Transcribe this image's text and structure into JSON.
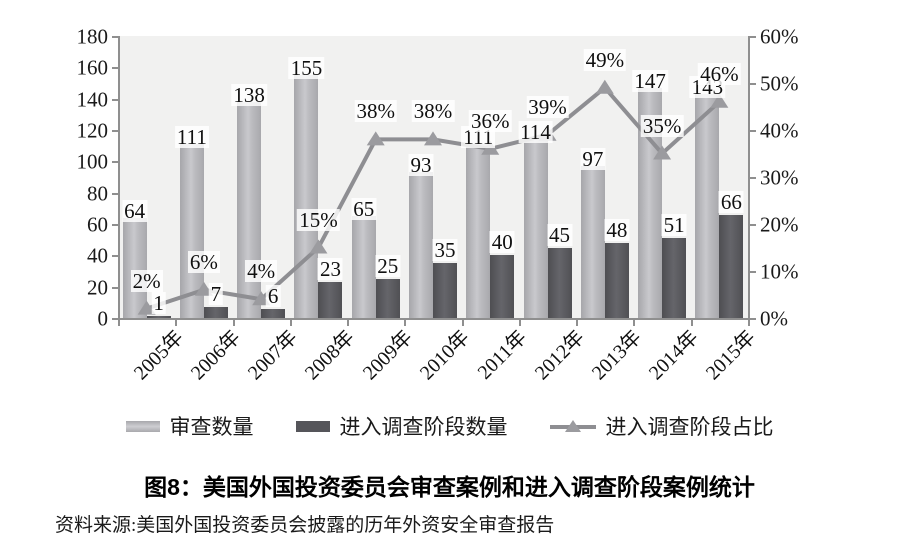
{
  "chart_data": {
    "type": "combo",
    "title": "图8：美国外国投资委员会审查案例和进入调查阶段案例统计",
    "categories": [
      "2005年",
      "2006年",
      "2007年",
      "2008年",
      "2009年",
      "2010年",
      "2011年",
      "2012年",
      "2013年",
      "2014年",
      "2015年"
    ],
    "series": [
      {
        "name": "审查数量",
        "type": "bar",
        "axis": "left",
        "values": [
          64,
          111,
          138,
          155,
          65,
          93,
          111,
          114,
          97,
          147,
          143
        ],
        "color_style": "light-gray-gradient"
      },
      {
        "name": "进入调查阶段数量",
        "type": "bar",
        "axis": "left",
        "values": [
          1,
          7,
          6,
          23,
          25,
          35,
          40,
          45,
          48,
          51,
          66
        ],
        "color_style": "dark-gray"
      },
      {
        "name": "进入调查阶段占比",
        "type": "line",
        "axis": "right",
        "values": [
          2,
          6,
          4,
          15,
          38,
          38,
          36,
          39,
          49,
          35,
          46
        ],
        "label_suffix": "%",
        "line_color": "#8e8e92",
        "marker_color": "#9b9b9f",
        "marker": "triangle-up"
      }
    ],
    "left_axis": {
      "min": 0,
      "max": 180,
      "step": 20,
      "ticks": [
        "0",
        "20",
        "40",
        "60",
        "80",
        "100",
        "120",
        "140",
        "160",
        "180"
      ]
    },
    "right_axis": {
      "min": 0,
      "max": 60,
      "step": 10,
      "ticks": [
        "0%",
        "10%",
        "20%",
        "30%",
        "40%",
        "50%",
        "60%"
      ]
    },
    "grid": false,
    "legend_position": "bottom",
    "plot_background": "#f1f1f0"
  },
  "source": {
    "text": "资料来源:美国外国投资委员会披露的历年外资安全审查报告"
  }
}
